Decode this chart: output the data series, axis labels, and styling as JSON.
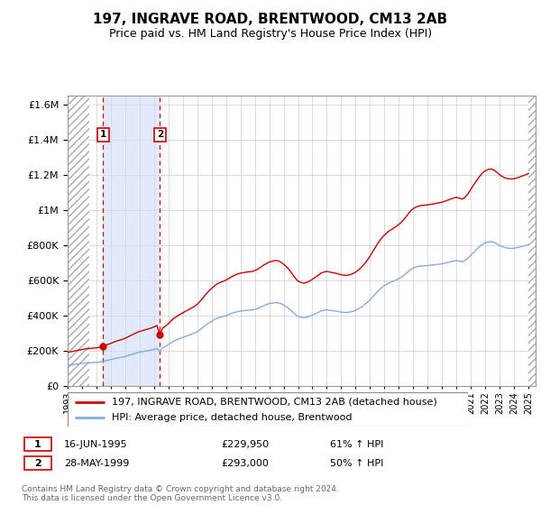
{
  "title": "197, INGRAVE ROAD, BRENTWOOD, CM13 2AB",
  "subtitle": "Price paid vs. HM Land Registry's House Price Index (HPI)",
  "hpi_label": "HPI: Average price, detached house, Brentwood",
  "property_label": "197, INGRAVE ROAD, BRENTWOOD, CM13 2AB (detached house)",
  "sale_label_1": "16-JUN-1995",
  "sale_price_1": 229950,
  "sale_pct_1": "61% ↑ HPI",
  "sale_date_1_x": 1995.46,
  "sale_label_2": "28-MAY-1999",
  "sale_price_2": 293000,
  "sale_pct_2": "50% ↑ HPI",
  "sale_date_2_x": 1999.41,
  "footer": "Contains HM Land Registry data © Crown copyright and database right 2024.\nThis data is licensed under the Open Government Licence v3.0.",
  "ylim": [
    0,
    1650000
  ],
  "xlim_start": 1993.0,
  "xlim_end": 2025.5,
  "hatch_left_end": 1994.5,
  "hatch_right_start": 2025.0,
  "property_color": "#cc0000",
  "hpi_color": "#88aadd",
  "hatch_color": "#aaaaaa",
  "shade_color": "#ccddf5",
  "dashed_line_color": "#cc0000",
  "background_color": "#ffffff",
  "grid_color": "#cccccc",
  "title_fontsize": 11,
  "subtitle_fontsize": 9,
  "tick_fontsize": 7,
  "ytick_fontsize": 8,
  "legend_fontsize": 8,
  "table_fontsize": 8,
  "footer_fontsize": 6.5
}
